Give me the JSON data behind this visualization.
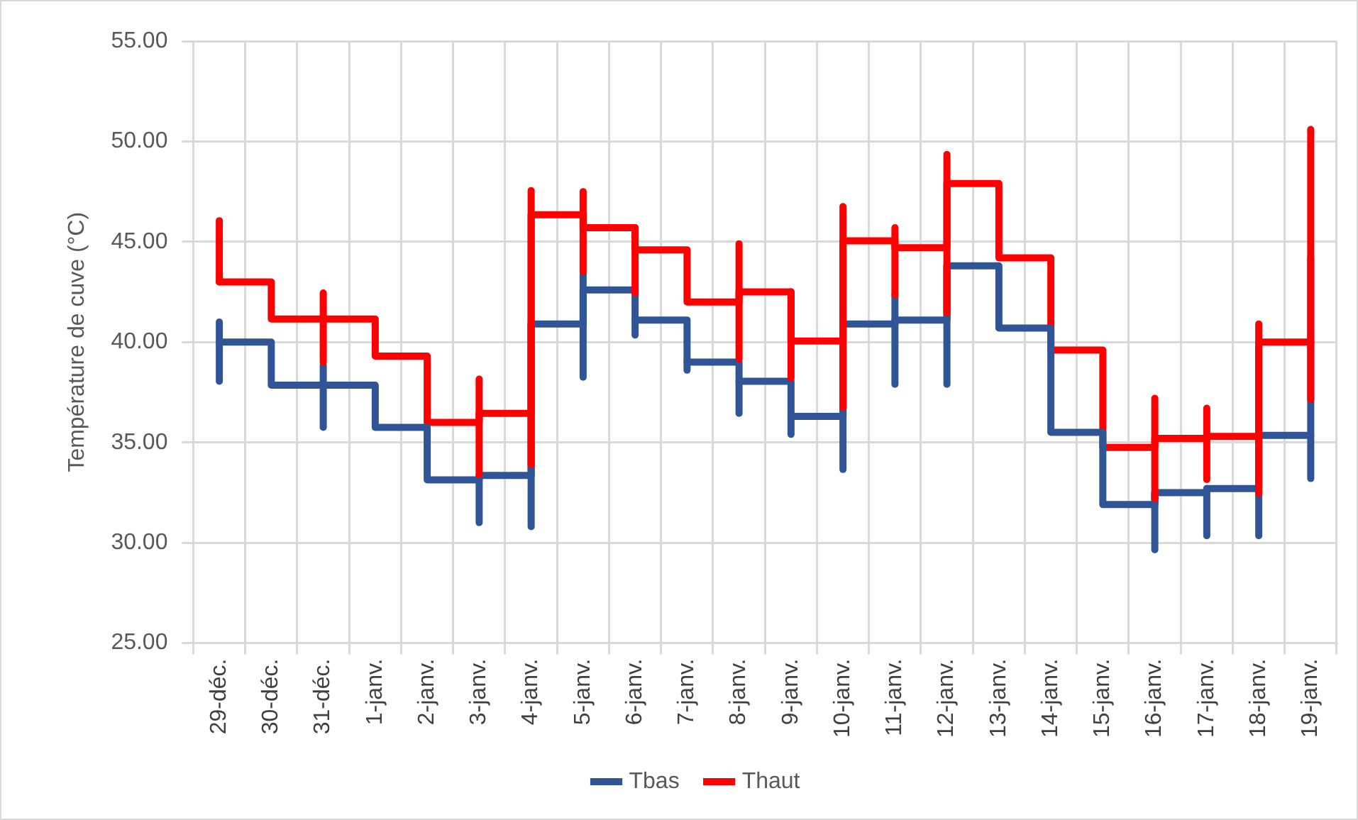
{
  "chart_data": {
    "type": "step",
    "ylabel": "Température de cuve (°C)",
    "categories": [
      "29-déc.",
      "30-déc.",
      "31-déc.",
      "1-janv.",
      "2-janv.",
      "3-janv.",
      "4-janv.",
      "5-janv.",
      "6-janv.",
      "7-janv.",
      "8-janv.",
      "9-janv.",
      "10-janv.",
      "11-janv.",
      "12-janv.",
      "13-janv.",
      "14-janv.",
      "15-janv.",
      "16-janv.",
      "17-janv.",
      "18-janv.",
      "19-janv."
    ],
    "series": [
      {
        "name": "Tbas",
        "color": "#2f5597",
        "values": [
          40.0,
          37.85,
          37.85,
          35.75,
          33.13,
          33.35,
          40.9,
          42.6,
          41.1,
          39.0,
          38.05,
          36.3,
          40.9,
          41.1,
          43.8,
          40.7,
          35.5,
          31.9,
          32.5,
          32.7,
          35.35,
          35.35
        ],
        "errors": [
          [
            38.05,
            41.0
          ],
          null,
          [
            35.75,
            38.85
          ],
          null,
          null,
          [
            31.0,
            33.35
          ],
          [
            30.8,
            40.9
          ],
          [
            38.25,
            43.4
          ],
          [
            40.35,
            41.1
          ],
          [
            38.6,
            39.0
          ],
          [
            36.45,
            38.05
          ],
          [
            35.4,
            36.3
          ],
          [
            33.65,
            40.9
          ],
          [
            37.9,
            42.35
          ],
          [
            37.9,
            43.8
          ],
          null,
          null,
          null,
          [
            29.65,
            32.5
          ],
          [
            30.35,
            32.7
          ],
          [
            30.35,
            35.35
          ],
          [
            33.2,
            44.2
          ]
        ]
      },
      {
        "name": "Thaut",
        "color": "#ff0000",
        "values": [
          43.0,
          41.15,
          41.15,
          39.3,
          36.0,
          36.45,
          46.35,
          45.7,
          44.6,
          42.0,
          42.5,
          40.05,
          45.05,
          44.7,
          47.9,
          44.2,
          39.6,
          34.75,
          35.2,
          35.3,
          40.0,
          40.0
        ],
        "errors": [
          [
            43.0,
            46.05
          ],
          null,
          [
            39.0,
            42.45
          ],
          null,
          null,
          [
            33.4,
            38.15
          ],
          [
            33.9,
            47.55
          ],
          [
            43.5,
            47.5
          ],
          [
            42.45,
            45.7
          ],
          null,
          [
            39.15,
            44.9
          ],
          [
            38.2,
            42.5
          ],
          [
            36.75,
            46.75
          ],
          [
            42.35,
            45.7
          ],
          [
            41.45,
            49.35
          ],
          null,
          null,
          null,
          [
            32.2,
            37.2
          ],
          [
            33.15,
            36.7
          ],
          [
            32.45,
            40.9
          ],
          [
            37.15,
            50.6
          ]
        ]
      }
    ],
    "ylim": [
      25,
      55
    ],
    "yticks": [
      {
        "value": 25,
        "label": "25.00"
      },
      {
        "value": 30,
        "label": "30.00"
      },
      {
        "value": 35,
        "label": "35.00"
      },
      {
        "value": 40,
        "label": "40.00"
      },
      {
        "value": 45,
        "label": "45.00"
      },
      {
        "value": 50,
        "label": "50.00"
      },
      {
        "value": 55,
        "label": "55.00"
      }
    ],
    "grid": true,
    "legend": "bottom",
    "line_style": "solid",
    "marker": "none"
  }
}
